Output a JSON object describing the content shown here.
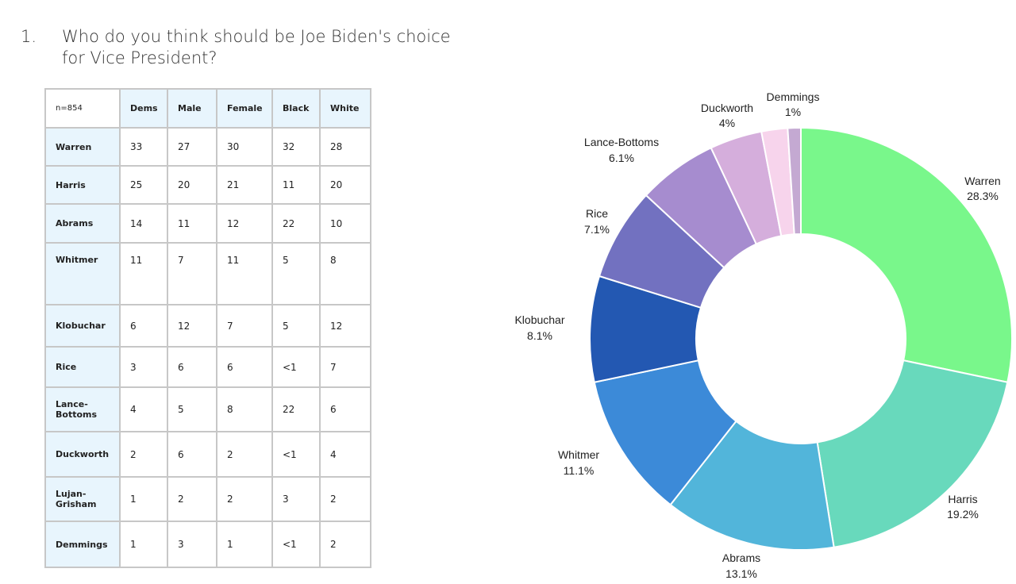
{
  "question": {
    "number": "1.",
    "line1": "Who do you think should be Joe Biden's choice",
    "line2": "for Vice President?"
  },
  "table": {
    "corner": "n=854",
    "columns": [
      "Dems",
      "Male",
      "Female",
      "Black",
      "White"
    ],
    "rows": [
      {
        "name": "Warren",
        "values": [
          "33",
          "27",
          "30",
          "32",
          "28"
        ]
      },
      {
        "name": "Harris",
        "values": [
          "25",
          "20",
          "21",
          "11",
          "20"
        ]
      },
      {
        "name": "Abrams",
        "values": [
          "14",
          "11",
          "12",
          "22",
          "10"
        ]
      },
      {
        "name": "Whitmer",
        "values": [
          "11",
          "7",
          "11",
          "5",
          "8"
        ]
      },
      {
        "name": "Klobuchar",
        "values": [
          "6",
          "12",
          "7",
          "5",
          "12"
        ]
      },
      {
        "name": "Rice",
        "values": [
          "3",
          "6",
          "6",
          "<1",
          "7"
        ]
      },
      {
        "name": "Lance-\nBottoms",
        "values": [
          "4",
          "5",
          "8",
          "22",
          "6"
        ]
      },
      {
        "name": "Duckworth",
        "values": [
          "2",
          "6",
          "2",
          "<1",
          "4"
        ]
      },
      {
        "name": "Lujan-\nGrisham",
        "values": [
          "1",
          "2",
          "2",
          "3",
          "2"
        ]
      },
      {
        "name": "Demmings",
        "values": [
          "1",
          "3",
          "1",
          "<1",
          "2"
        ]
      }
    ]
  },
  "chart_data": {
    "type": "pie",
    "variant": "donut",
    "slices": [
      {
        "label": "Warren",
        "value": 28.3,
        "value_label": "28.3%",
        "color": "#79f78b"
      },
      {
        "label": "Harris",
        "value": 19.2,
        "value_label": "19.2%",
        "color": "#68d9bc"
      },
      {
        "label": "Abrams",
        "value": 13.1,
        "value_label": "13.1%",
        "color": "#52b5da"
      },
      {
        "label": "Whitmer",
        "value": 11.1,
        "value_label": "11.1%",
        "color": "#3c8ad8"
      },
      {
        "label": "Klobuchar",
        "value": 8.1,
        "value_label": "8.1%",
        "color": "#2358b2"
      },
      {
        "label": "Rice",
        "value": 7.1,
        "value_label": "7.1%",
        "color": "#7271c0"
      },
      {
        "label": "Lance-Bottoms",
        "value": 6.1,
        "value_label": "6.1%",
        "color": "#a68ccf"
      },
      {
        "label": "Duckworth",
        "value": 4,
        "value_label": "4%",
        "color": "#d5aedc"
      },
      {
        "label": "",
        "value": 2,
        "value_label": "",
        "color": "#f7d4ec"
      },
      {
        "label": "Demmings",
        "value": 1,
        "value_label": "1%",
        "color": "#c4a9d2"
      }
    ]
  }
}
